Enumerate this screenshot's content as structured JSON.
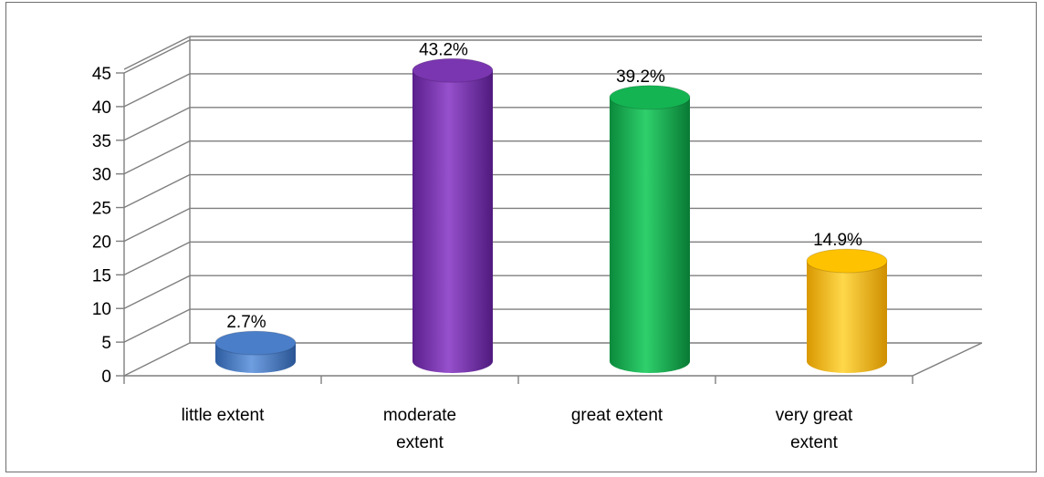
{
  "chart_data": {
    "type": "bar",
    "categories": [
      "little extent",
      "moderate extent",
      "great extent",
      "very great extent"
    ],
    "category_lines": [
      [
        "little extent"
      ],
      [
        "moderate",
        "extent"
      ],
      [
        "great extent"
      ],
      [
        "very great",
        "extent"
      ]
    ],
    "values": [
      2.7,
      43.2,
      39.2,
      14.9
    ],
    "data_labels": [
      "2.7%",
      "43.2%",
      "39.2%",
      "14.9%"
    ],
    "colors": [
      "#4a7ec8",
      "#7a36b0",
      "#14b452",
      "#ffc200"
    ],
    "ylim": [
      0,
      45
    ],
    "yticks": [
      "0",
      "5",
      "10",
      "15",
      "20",
      "25",
      "30",
      "35",
      "40",
      "45"
    ],
    "grid": true,
    "three_d": true,
    "title": "",
    "xlabel": "",
    "ylabel": ""
  }
}
